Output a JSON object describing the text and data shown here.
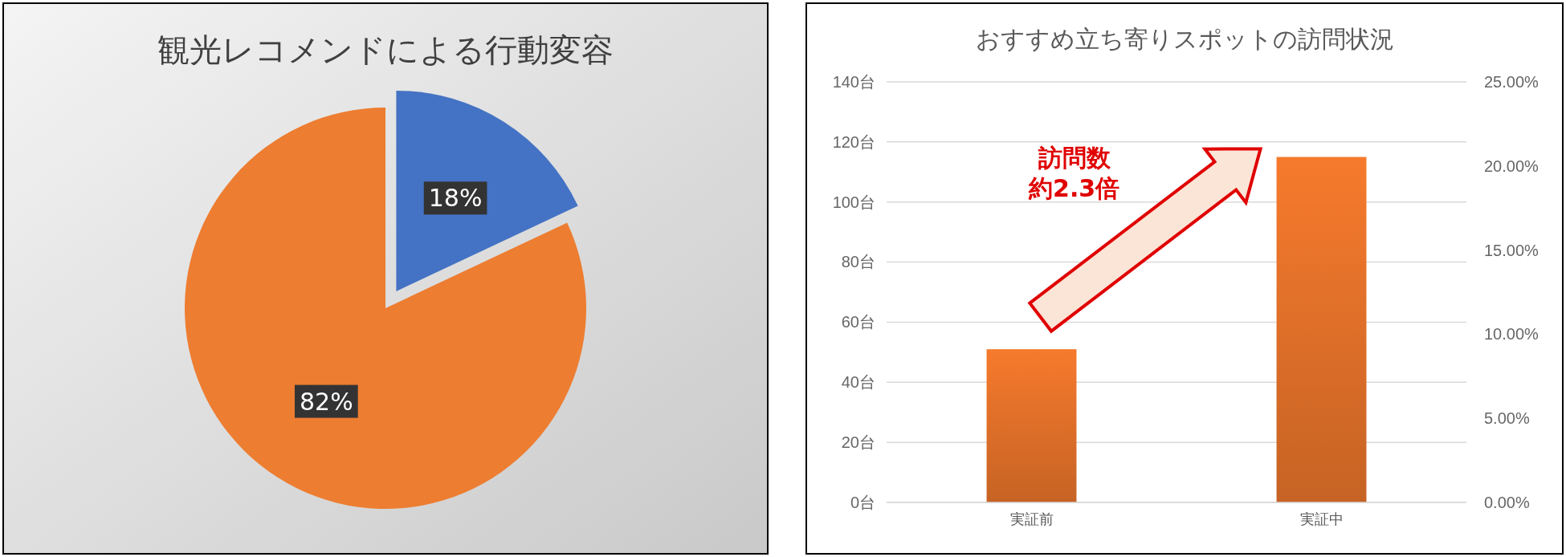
{
  "chart_data": [
    {
      "type": "pie",
      "title": "観光レコメンドによる行動変容",
      "categories": [
        null,
        null
      ],
      "values": [
        18,
        82
      ],
      "colors": [
        "#4472c4",
        "#ed7d31"
      ],
      "value_labels": [
        "18%",
        "82%"
      ]
    },
    {
      "type": "bar",
      "title": "おすすめ立ち寄りスポットの訪問状況",
      "categories": [
        "実証前",
        "実証中"
      ],
      "values": [
        51,
        115
      ],
      "color": "#d56a27",
      "ylim": [
        0,
        140
      ],
      "yticks": [
        {
          "value": 0,
          "label": "0台"
        },
        {
          "value": 20,
          "label": "20台"
        },
        {
          "value": 40,
          "label": "40台"
        },
        {
          "value": 60,
          "label": "60台"
        },
        {
          "value": 80,
          "label": "80台"
        },
        {
          "value": 100,
          "label": "100台"
        },
        {
          "value": 120,
          "label": "120台"
        },
        {
          "value": 140,
          "label": "140台"
        }
      ],
      "y2lim": [
        0,
        25
      ],
      "y2ticks": [
        {
          "value": 0,
          "label": "0.00%"
        },
        {
          "value": 5,
          "label": "5.00%"
        },
        {
          "value": 10,
          "label": "10.00%"
        },
        {
          "value": 15,
          "label": "15.00%"
        },
        {
          "value": 20,
          "label": "20.00%"
        },
        {
          "value": 25,
          "label": "25.00%"
        }
      ],
      "grid": "y",
      "annotations": [
        "訪問数",
        "約2.3倍"
      ]
    }
  ]
}
